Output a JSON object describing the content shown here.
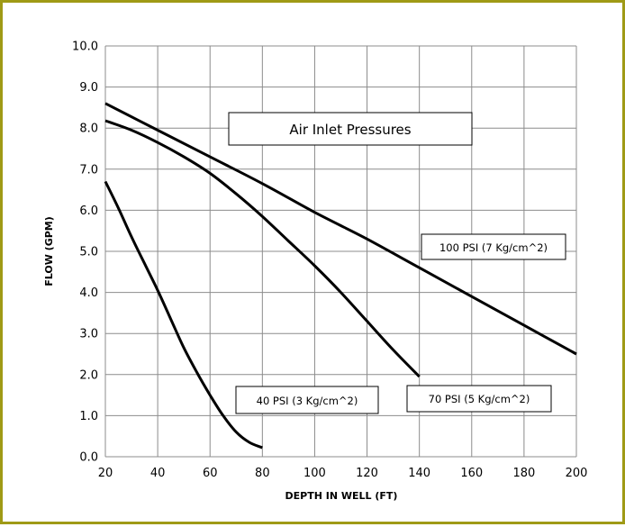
{
  "chart_data": {
    "type": "line",
    "title": "Air Inlet Pressures",
    "xlabel": "DEPTH IN WELL (FT)",
    "ylabel": "FLOW (GPM)",
    "xlim": [
      20,
      200
    ],
    "ylim": [
      0,
      10
    ],
    "x_ticks": [
      "20",
      "40",
      "60",
      "80",
      "100",
      "120",
      "140",
      "160",
      "180",
      "200"
    ],
    "y_ticks": [
      "0.0",
      "1.0",
      "2.0",
      "3.0",
      "4.0",
      "5.0",
      "6.0",
      "7.0",
      "8.0",
      "9.0",
      "10.0"
    ],
    "grid": true,
    "legend": "none",
    "series": [
      {
        "name": "100 PSI (7 Kg/cm^2)",
        "x": [
          20,
          40,
          60,
          80,
          100,
          120,
          140,
          160,
          180,
          200
        ],
        "y": [
          8.6,
          7.95,
          7.3,
          6.65,
          5.95,
          5.3,
          4.6,
          3.9,
          3.2,
          2.5
        ]
      },
      {
        "name": "70 PSI (5 Kg/cm^2)",
        "x": [
          20,
          30,
          40,
          50,
          60,
          70,
          80,
          90,
          100,
          110,
          120,
          130,
          140
        ],
        "y": [
          8.18,
          7.95,
          7.65,
          7.3,
          6.9,
          6.4,
          5.85,
          5.25,
          4.65,
          4.0,
          3.3,
          2.6,
          1.95
        ]
      },
      {
        "name": "40 PSI (3 Kg/cm^2)",
        "x": [
          20,
          25,
          30,
          35,
          40,
          45,
          50,
          55,
          60,
          65,
          70,
          75,
          80
        ],
        "y": [
          6.7,
          6.05,
          5.35,
          4.7,
          4.05,
          3.35,
          2.65,
          2.05,
          1.5,
          1.0,
          0.6,
          0.35,
          0.22
        ]
      }
    ]
  }
}
